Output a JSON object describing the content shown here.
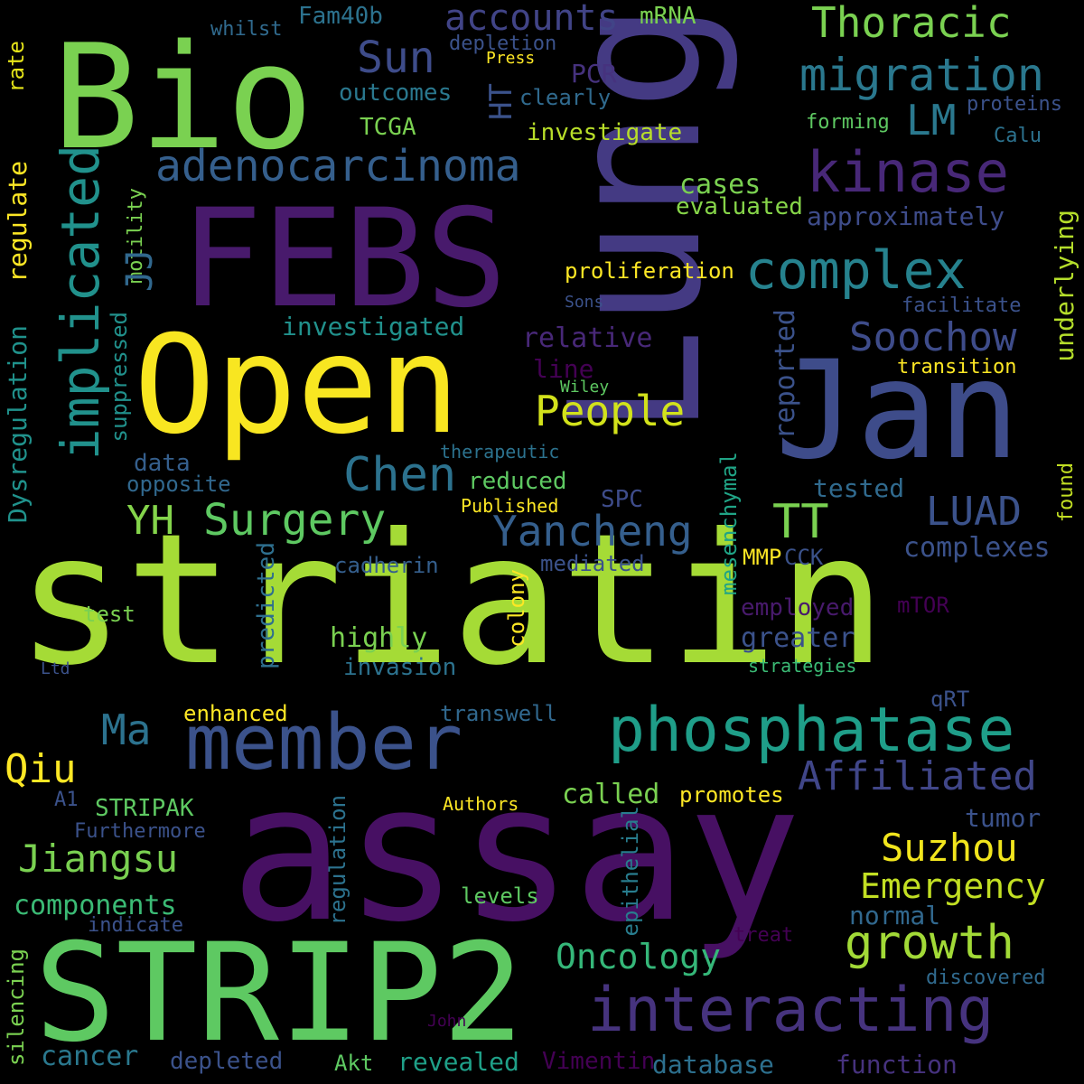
{
  "words": [
    "striatin",
    "assay",
    "Lung",
    "Bio",
    "FEBS",
    "Open",
    "Jan",
    "STRIP2",
    "member",
    "phosphatase",
    "interacting",
    "complex",
    "kinase",
    "migration",
    "adenocarcinoma",
    "implicated",
    "Thoracic",
    "accounts",
    "Sun",
    "LM",
    "Soochow",
    "People",
    "Chen",
    "YH",
    "Surgery",
    "Yancheng",
    "TT",
    "LUAD",
    "Affiliated",
    "Ma",
    "Qiu",
    "Suzhou",
    "Jiangsu",
    "Emergency",
    "growth",
    "Oncology",
    "STRIPAK",
    "components",
    "cancer",
    "revealed",
    "Vimentin",
    "database",
    "function",
    "complexes",
    "tested",
    "investigated",
    "highly",
    "invasion",
    "greater",
    "employed",
    "relative",
    "line",
    "reported",
    "underlying",
    "approximately",
    "evaluated",
    "cases",
    "proliferation",
    "investigate",
    "TCGA",
    "outcomes",
    "PCR",
    "HT",
    "clearly",
    "depletion",
    "Press",
    "mRNA",
    "Fam40b",
    "whilst",
    "rate",
    "regulate",
    "Dysregulation",
    "suppressed",
    "motility",
    "JJ",
    "data",
    "opposite",
    "therapeutic",
    "reduced",
    "Published",
    "SPC",
    "mesenchymal",
    "cadherin",
    "mediated",
    "MMP",
    "CCK",
    "mTOR",
    "test",
    "predicted",
    "colony",
    "strategies",
    "qRT",
    "enhanced",
    "transwell",
    "called",
    "promotes",
    "tumor",
    "A1",
    "Authors",
    "Furthermore",
    "epithelial",
    "regulation",
    "levels",
    "indicate",
    "normal",
    "treat",
    "discovered",
    "silencing",
    "John",
    "depleted",
    "Akt",
    "found",
    "transition",
    "facilitate",
    "Sons",
    "Wiley",
    "forming",
    "proteins",
    "Calu",
    "Ltd"
  ]
}
